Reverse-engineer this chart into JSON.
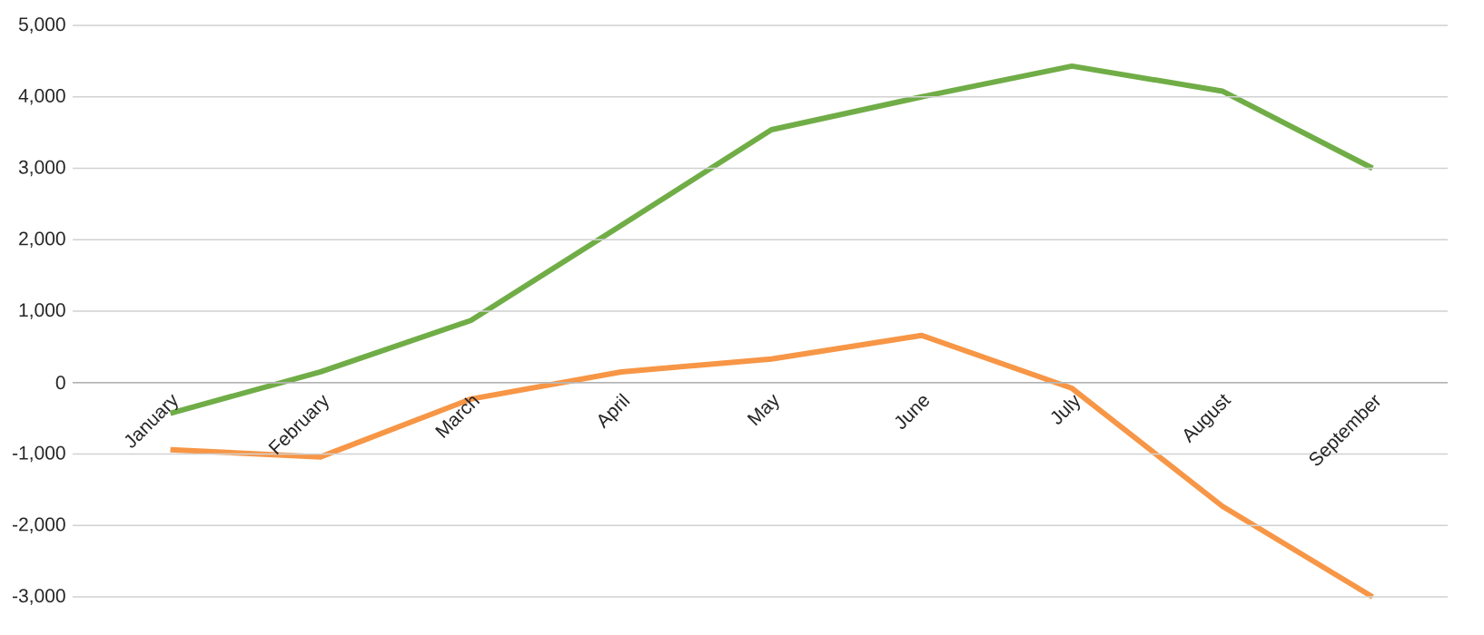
{
  "chart_data": {
    "type": "line",
    "categories": [
      "January",
      "February",
      "March",
      "April",
      "May",
      "June",
      "July",
      "August",
      "September"
    ],
    "series": [
      {
        "color": "#70ad47",
        "values": [
          -430,
          150,
          870,
          2200,
          3540,
          4000,
          4430,
          4080,
          3000
        ]
      },
      {
        "color": "#f79646",
        "values": [
          -940,
          -1040,
          -230,
          150,
          330,
          660,
          -80,
          -1730,
          -3000
        ]
      }
    ],
    "ylim": [
      -3000,
      5000
    ],
    "yticks": [
      {
        "value": -3000,
        "label": "-3,000"
      },
      {
        "value": -2000,
        "label": "-2,000"
      },
      {
        "value": -1000,
        "label": "-1,000"
      },
      0,
      {
        "value": 1000,
        "label": "1,000"
      },
      {
        "value": 2000,
        "label": "2,000"
      },
      {
        "value": 3000,
        "label": "3,000"
      },
      {
        "value": 4000,
        "label": "4,000"
      },
      {
        "value": 5000,
        "label": "5,000"
      }
    ],
    "grid": "y",
    "marker": "none",
    "line_style": "solid"
  }
}
